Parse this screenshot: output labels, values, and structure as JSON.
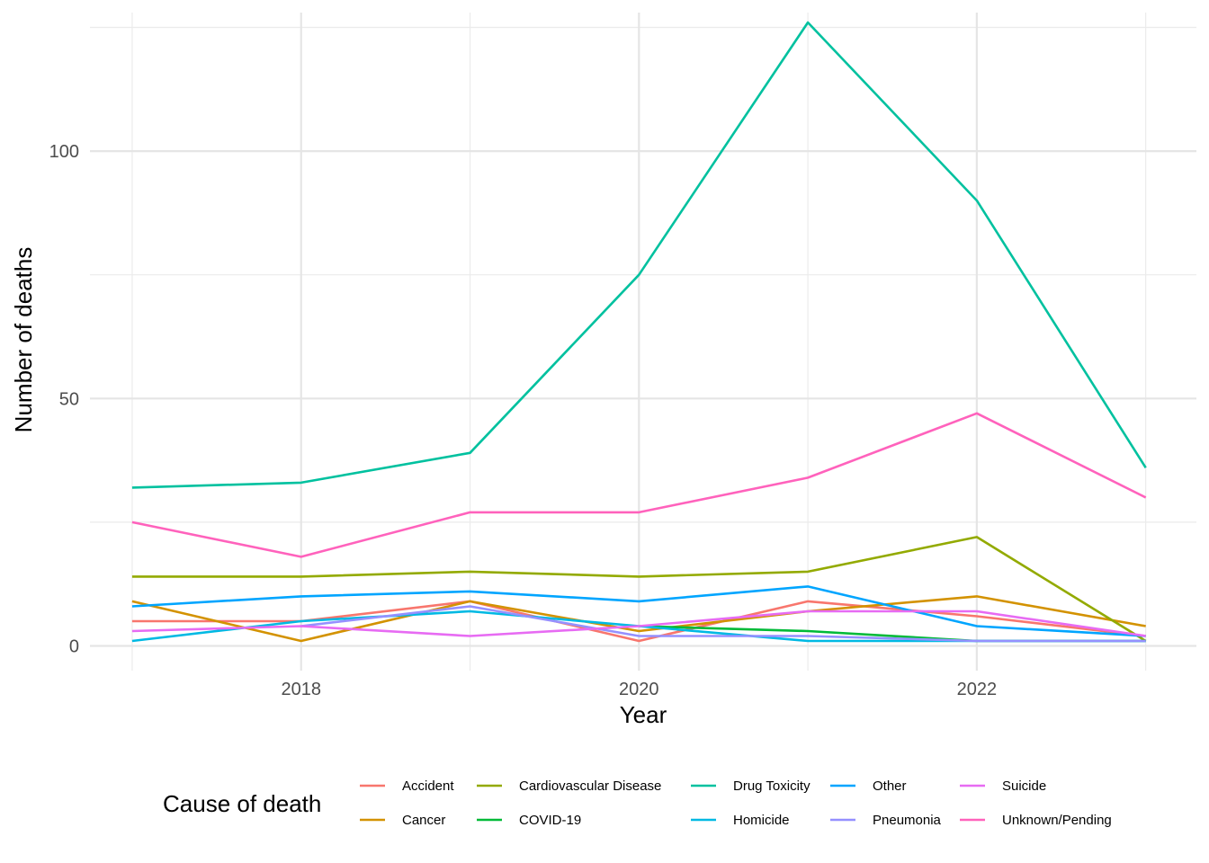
{
  "chart_data": {
    "type": "line",
    "title": "",
    "xlabel": "Year",
    "ylabel": "Number of deaths",
    "x": [
      2017,
      2018,
      2019,
      2020,
      2021,
      2022,
      2023
    ],
    "xlim": [
      2016.75,
      2023.3
    ],
    "ylim": [
      -5,
      128
    ],
    "x_ticks": [
      2018,
      2020,
      2022
    ],
    "y_ticks": [
      0,
      50,
      100
    ],
    "y_minor_ticks": [
      25,
      75,
      125
    ],
    "grid": true,
    "legend_title": "Cause of death",
    "legend_position": "bottom",
    "series": [
      {
        "name": "Accident",
        "color": "#F8766D",
        "values": [
          5,
          5,
          9,
          1,
          9,
          6,
          2
        ]
      },
      {
        "name": "Cancer",
        "color": "#D39200",
        "values": [
          9,
          1,
          9,
          3,
          7,
          10,
          4
        ]
      },
      {
        "name": "Cardiovascular Disease",
        "color": "#93AA00",
        "values": [
          14,
          14,
          15,
          14,
          15,
          22,
          1
        ]
      },
      {
        "name": "COVID-19",
        "color": "#00BA38",
        "values": [
          null,
          null,
          null,
          4,
          3,
          1,
          1
        ]
      },
      {
        "name": "Drug Toxicity",
        "color": "#00C19F",
        "values": [
          32,
          33,
          39,
          75,
          126,
          90,
          36
        ]
      },
      {
        "name": "Homicide",
        "color": "#00B9E3",
        "values": [
          1,
          5,
          7,
          4,
          1,
          1,
          1
        ]
      },
      {
        "name": "Other",
        "color": "#00A5FF",
        "values": [
          8,
          10,
          11,
          9,
          12,
          4,
          2
        ]
      },
      {
        "name": "Pneumonia",
        "color": "#9590FF",
        "values": [
          null,
          4,
          8,
          2,
          2,
          1,
          1
        ]
      },
      {
        "name": "Suicide",
        "color": "#E76BF3",
        "values": [
          3,
          4,
          2,
          4,
          7,
          7,
          2
        ]
      },
      {
        "name": "Unknown/Pending",
        "color": "#FF62BC",
        "values": [
          25,
          18,
          27,
          27,
          34,
          47,
          30
        ]
      }
    ]
  }
}
